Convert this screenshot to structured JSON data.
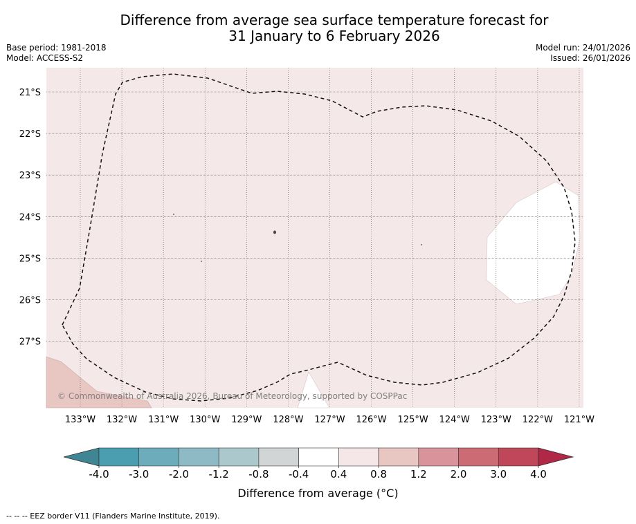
{
  "header": {
    "title_line1": "Difference from average sea surface temperature forecast for",
    "title_line2": "31 January to 6 February 2026",
    "base_period": "Base period: 1981-2018",
    "model": "Model: ACCESS-S2",
    "model_run": "Model run: 24/01/2026",
    "issued": "Issued: 26/01/2026"
  },
  "map": {
    "lon_labels": [
      "133°W",
      "132°W",
      "131°W",
      "130°W",
      "129°W",
      "128°W",
      "127°W",
      "126°W",
      "125°W",
      "124°W",
      "123°W",
      "122°W",
      "121°W"
    ],
    "lat_labels": [
      "21°S",
      "22°S",
      "23°S",
      "24°S",
      "25°S",
      "26°S",
      "27°S"
    ],
    "copyright": "© Commonwealth of Australia 2026, Bureau of Meteorology, supported by COSPPac",
    "background_color": "#f5e8e8",
    "anomaly_color_0_8": "#e8c6c2",
    "neutral_color": "#ffffff"
  },
  "colorbar": {
    "tick_labels": [
      "-4.0",
      "-3.0",
      "-2.0",
      "-1.2",
      "-0.8",
      "-0.4",
      "0.4",
      "0.8",
      "1.2",
      "2.0",
      "3.0",
      "4.0"
    ],
    "colors": [
      "#4a9eb0",
      "#6dadbb",
      "#8ebac5",
      "#abc9cd",
      "#d2d5d6",
      "#ffffff",
      "#f5e7e7",
      "#e8c6c2",
      "#d9939a",
      "#cc6b74",
      "#bf4759"
    ],
    "extend_low_color": "#3f8593",
    "extend_high_color": "#b02846",
    "label": "Difference from average (°C)"
  },
  "footnote": "-- -- -- EEZ border V11 (Flanders Marine Institute, 2019)."
}
